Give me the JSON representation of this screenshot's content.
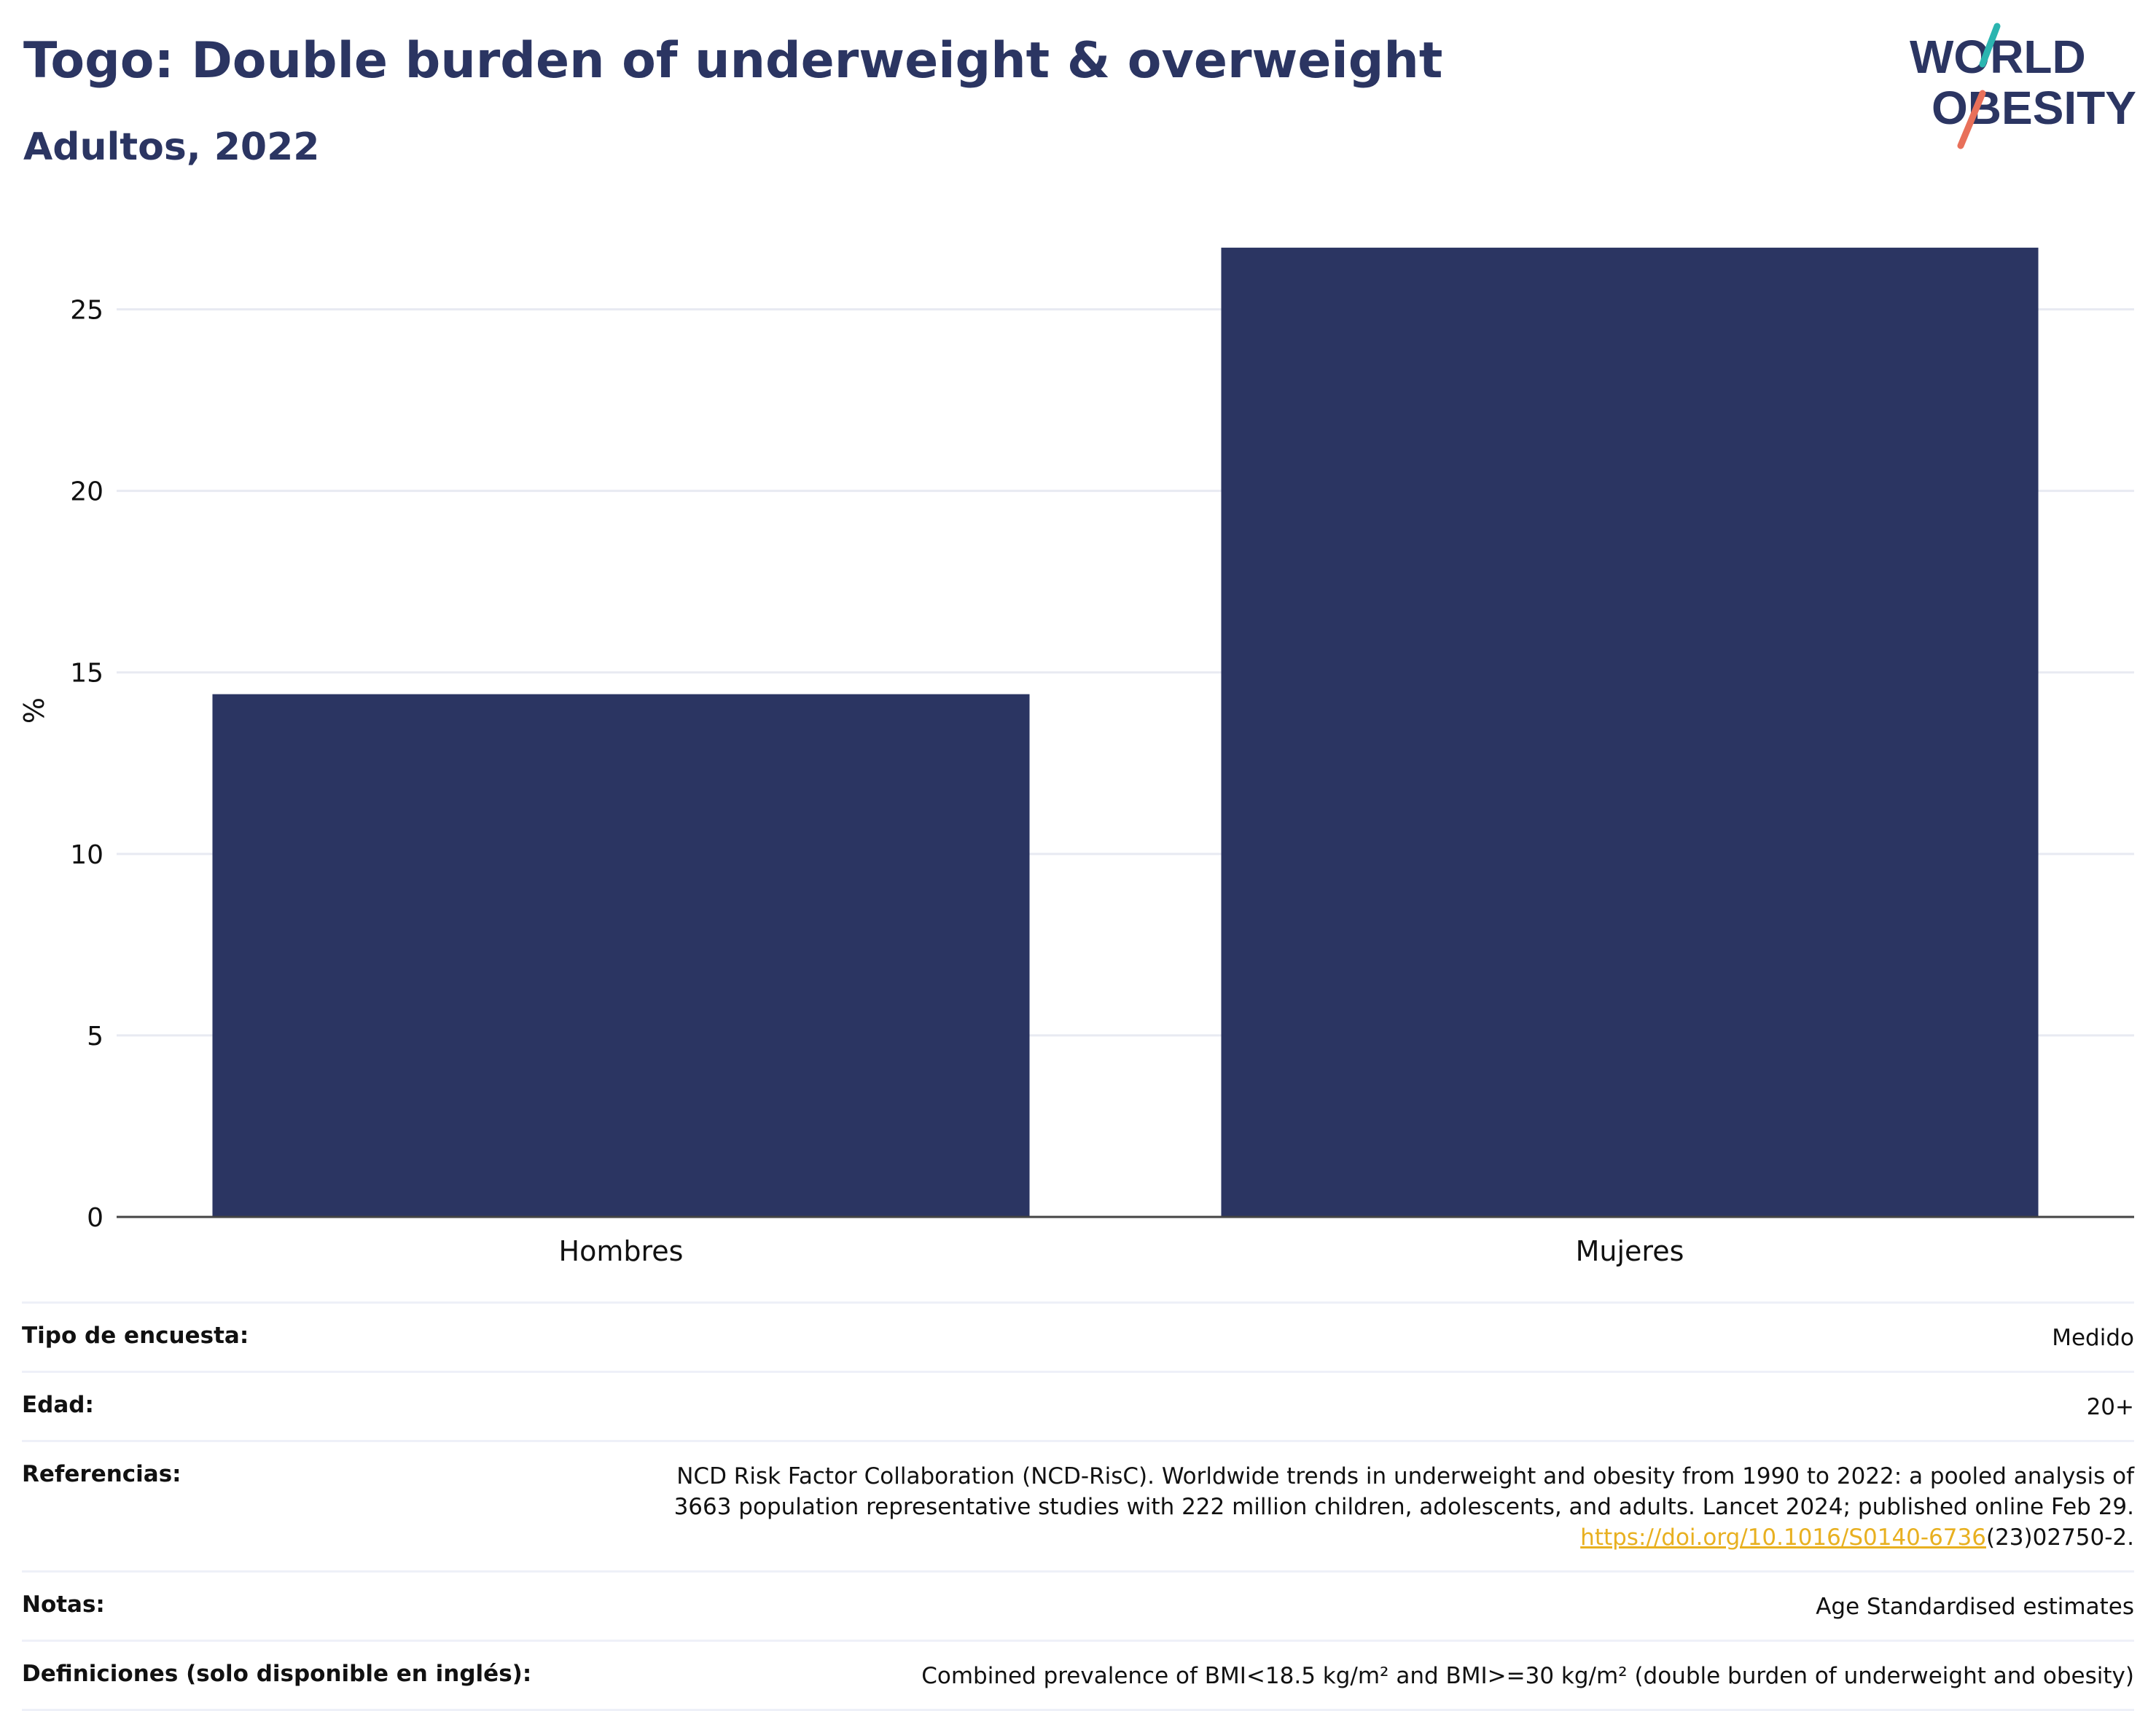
{
  "header": {
    "title": "Togo: Double burden of underweight & overweight",
    "subtitle": "Adultos, 2022"
  },
  "logo": {
    "line1": "WORLD",
    "line2": "OBESITY"
  },
  "colors": {
    "bar": "#2b3562",
    "title": "#2b3562",
    "grid": "#e8eaf2",
    "link": "#e8b020",
    "logo_teal": "#2bb5b0",
    "logo_coral": "#e8705a"
  },
  "chart_data": {
    "type": "bar",
    "categories": [
      "Hombres",
      "Mujeres"
    ],
    "values": [
      14.4,
      26.7
    ],
    "ylabel": "%",
    "xlabel": "",
    "ylim": [
      0,
      27.5
    ],
    "yticks": [
      0,
      5,
      10,
      15,
      20,
      25
    ],
    "ytick_labels": [
      "0",
      "5",
      "10",
      "15",
      "20",
      "25"
    ],
    "grid": true
  },
  "meta": {
    "survey": {
      "label": "Tipo de encuesta:",
      "value": "Medido"
    },
    "age": {
      "label": "Edad:",
      "value": "20+"
    },
    "references": {
      "label": "Referencias:",
      "line1": "NCD Risk Factor Collaboration (NCD-RisC). Worldwide trends in underweight and obesity from 1990 to 2022: a pooled analysis of",
      "line2": "3663 population representative studies with 222 million children, adolescents, and adults. Lancet 2024; published online Feb 29.",
      "link": "https://doi.org/10.1016/S0140-6736",
      "link_suffix": "(23)02750-2."
    },
    "notes": {
      "label": "Notas:",
      "value": "Age Standardised estimates"
    },
    "definitions": {
      "label": "Definiciones (solo disponible en inglés):",
      "value": "Combined prevalence of BMI<18.5 kg/m² and BMI>=30 kg/m² (double burden of underweight and obesity)"
    }
  }
}
